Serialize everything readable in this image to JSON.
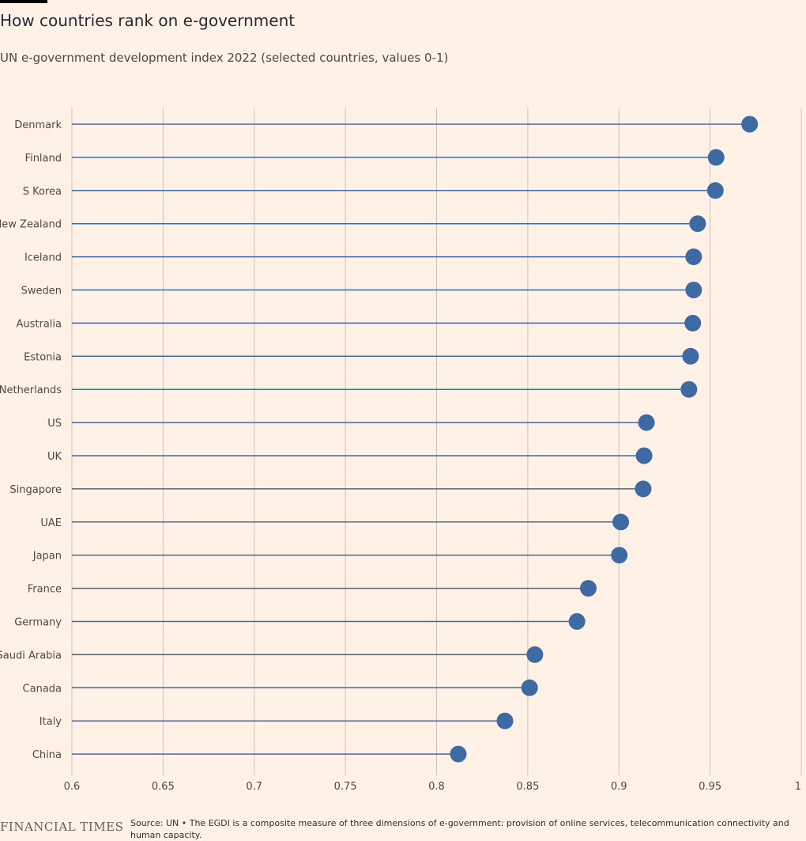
{
  "header": {
    "title": "How countries rank on e-government",
    "subtitle": "UN e-government development index 2022 (selected countries, values 0-1)"
  },
  "footer": {
    "logo_text": "FINANCIAL TIMES",
    "source": "Source: UN • The EGDI is a composite measure of three dimensions of e-government: provision of online services, telecommunication connectivity and human capacity."
  },
  "colors": {
    "background": "#fff1e5",
    "series": "#3d6aa3",
    "grid": "#c9c1b8",
    "text": "#33302e"
  },
  "chart_data": {
    "type": "scatter",
    "subtype": "lollipop",
    "title": "How countries rank on e-government",
    "subtitle": "UN e-government development index 2022 (selected countries, values 0-1)",
    "xlabel": "",
    "ylabel": "",
    "xlim": [
      0.6,
      1
    ],
    "xticks": [
      0.6,
      0.65,
      0.7,
      0.75,
      0.8,
      0.85,
      0.9,
      0.95,
      1
    ],
    "xtick_labels": [
      "0.6",
      "0.65",
      "0.7",
      "0.75",
      "0.8",
      "0.85",
      "0.9",
      "0.95",
      "1"
    ],
    "grid": "vertical",
    "categories": [
      "Denmark",
      "Finland",
      "S Korea",
      "New Zealand",
      "Iceland",
      "Sweden",
      "Australia",
      "Estonia",
      "Netherlands",
      "US",
      "UK",
      "Singapore",
      "UAE",
      "Japan",
      "France",
      "Germany",
      "Saudi Arabia",
      "Canada",
      "Italy",
      "China"
    ],
    "values": [
      0.9717,
      0.9533,
      0.9529,
      0.9432,
      0.941,
      0.941,
      0.9405,
      0.9393,
      0.9384,
      0.9151,
      0.9138,
      0.9133,
      0.901,
      0.9002,
      0.8832,
      0.877,
      0.8539,
      0.851,
      0.8375,
      0.8119
    ]
  }
}
